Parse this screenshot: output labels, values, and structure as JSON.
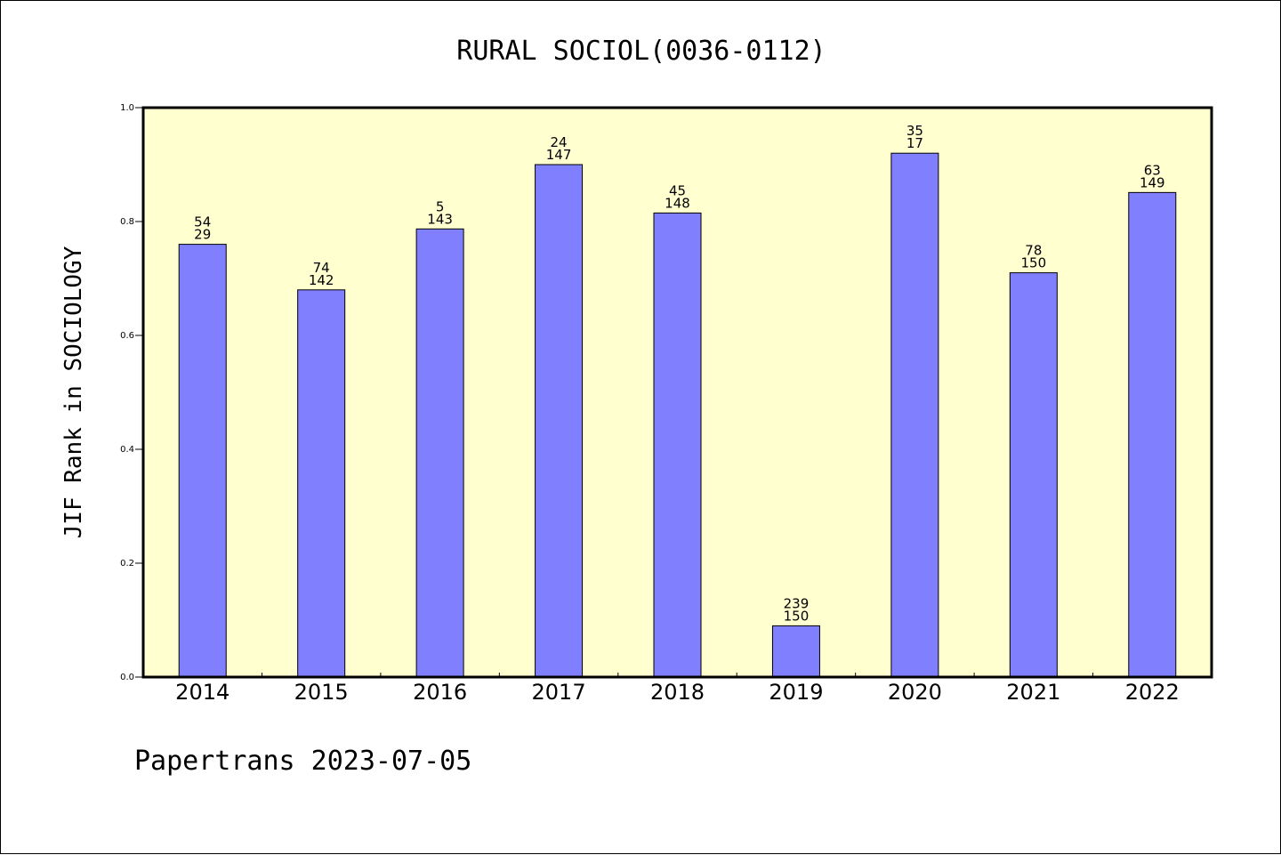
{
  "chart_data": {
    "type": "bar",
    "title": "RURAL SOCIOL(0036-0112)",
    "xlabel": "",
    "ylabel": "JIF Rank in SOCIOLOGY",
    "ylim": [
      0,
      1
    ],
    "yticks": [
      "0.0",
      "0.2",
      "0.4",
      "0.6",
      "0.8",
      "1.0"
    ],
    "categories": [
      "2014",
      "2015",
      "2016",
      "2017",
      "2018",
      "2019",
      "2020",
      "2021",
      "2022"
    ],
    "values": [
      0.76,
      0.68,
      0.787,
      0.9,
      0.815,
      0.09,
      0.92,
      0.71,
      0.851
    ],
    "labels_top": [
      "54",
      "74",
      "5",
      "24",
      "45",
      "239",
      "35",
      "78",
      "63"
    ],
    "labels_bottom": [
      "29",
      "142",
      "143",
      "147",
      "148",
      "150",
      "17",
      "150",
      "149"
    ],
    "grid": false,
    "legend": "none",
    "colors": {
      "bar": "#8080ff",
      "plot_background": "#ffffd0",
      "axis": "#000000"
    }
  },
  "footer": "Papertrans 2023-07-05"
}
